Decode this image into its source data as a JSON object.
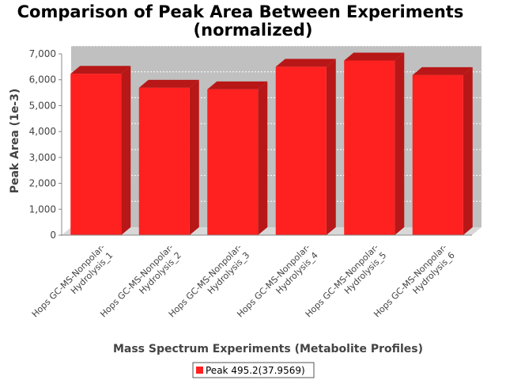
{
  "chart_data": {
    "type": "bar",
    "title_lines": [
      "Comparison of Peak Area Between Experiments",
      "(normalized)"
    ],
    "xlabel": "Mass Spectrum Experiments (Metabolite Profiles)",
    "ylabel": "Peak Area (1e-3)",
    "ylim": [
      0,
      7000
    ],
    "yticks": [
      0,
      1000,
      2000,
      3000,
      4000,
      5000,
      6000,
      7000
    ],
    "ytick_labels": [
      "0",
      "1,000",
      "2,000",
      "3,000",
      "4,000",
      "5,000",
      "6,000",
      "7,000"
    ],
    "grid": true,
    "legend_position": "bottom-center",
    "categories": [
      [
        "Hops GC-MS-Nonpolar-",
        "Hydrolysis_1"
      ],
      [
        "Hops GC-MS-Nonpolar-",
        "Hydrolysis_2"
      ],
      [
        "Hops GC-MS-Nonpolar-",
        "Hydrolysis_3"
      ],
      [
        "Hops GC-MS-Nonpolar-",
        "Hydrolysis_4"
      ],
      [
        "Hops GC-MS-Nonpolar-",
        "Hydrolysis_5"
      ],
      [
        "Hops GC-MS-Nonpolar-",
        "Hydrolysis_6"
      ]
    ],
    "series": [
      {
        "name": "Peak 495.2(37.9569)",
        "color": "#ff2020",
        "values": [
          6230,
          5690,
          5630,
          6500,
          6740,
          6180
        ]
      }
    ]
  }
}
